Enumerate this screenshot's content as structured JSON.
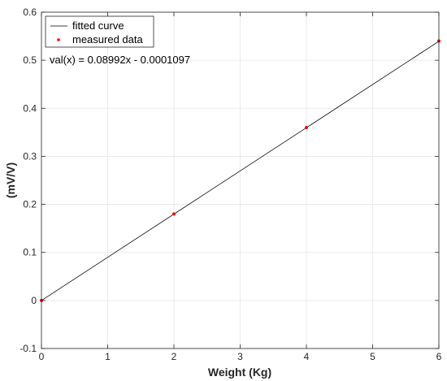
{
  "chart_data": {
    "type": "line",
    "title": "",
    "xlabel": "Weight (Kg)",
    "ylabel": "(mV/V)",
    "xlim": [
      0,
      6
    ],
    "ylim": [
      -0.1,
      0.6
    ],
    "xticks": [
      "0",
      "1",
      "2",
      "3",
      "4",
      "5",
      "6"
    ],
    "yticks": [
      "-0.1",
      "0",
      "0.1",
      "0.2",
      "0.3",
      "0.4",
      "0.5",
      "0.6"
    ],
    "grid": true,
    "legend_position": "top-left",
    "series": [
      {
        "name": "fitted curve",
        "kind": "line",
        "color": "#000000",
        "x": [
          0,
          6
        ],
        "y": [
          -0.0001097,
          0.5394103
        ]
      },
      {
        "name": "measured data",
        "kind": "scatter",
        "color": "#ff0000",
        "x": [
          0,
          2,
          4,
          6
        ],
        "y": [
          0,
          0.18,
          0.36,
          0.54
        ]
      }
    ],
    "annotation": "val(x) = 0.08992x - 0.0001097"
  }
}
